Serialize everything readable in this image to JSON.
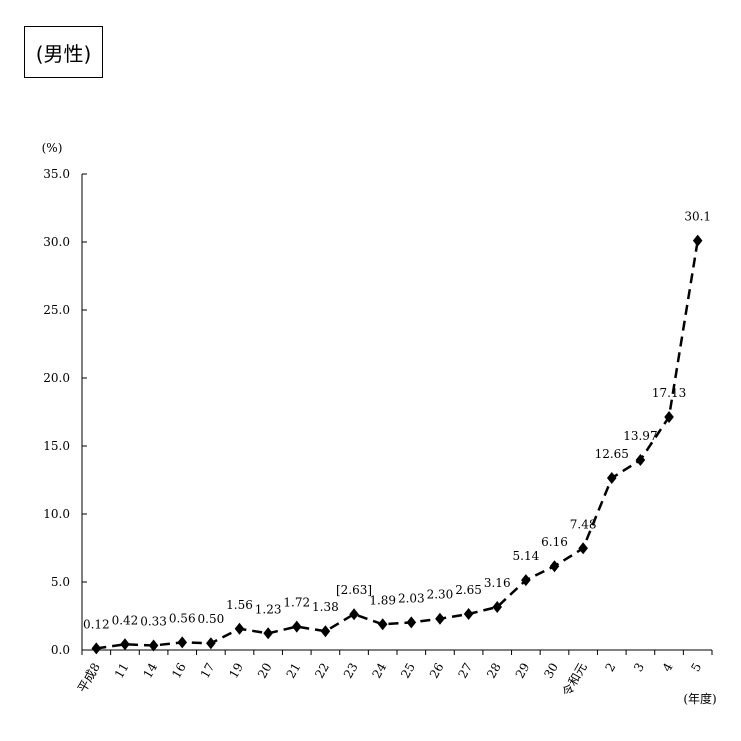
{
  "title": "(男性)",
  "chart_data": {
    "type": "line",
    "title": "(男性)",
    "y_unit_label": "(%)",
    "x_unit_label": "(年度)",
    "ylim": [
      0,
      35
    ],
    "y_ticks": [
      "0.0",
      "5.0",
      "10.0",
      "15.0",
      "20.0",
      "25.0",
      "30.0",
      "35.0"
    ],
    "categories": [
      "平成8",
      "11",
      "14",
      "16",
      "17",
      "19",
      "20",
      "21",
      "22",
      "23",
      "24",
      "25",
      "26",
      "27",
      "28",
      "29",
      "30",
      "令和元",
      "2",
      "3",
      "4",
      "5"
    ],
    "values": [
      0.12,
      0.42,
      0.33,
      0.56,
      0.5,
      1.56,
      1.23,
      1.72,
      1.38,
      2.63,
      1.89,
      2.03,
      2.3,
      2.65,
      3.16,
      5.14,
      6.16,
      7.48,
      12.65,
      13.97,
      17.13,
      30.1
    ],
    "value_labels": [
      "0.12",
      "0.42",
      "0.33",
      "0.56",
      "0.50",
      "1.56",
      "1.23",
      "1.72",
      "1.38",
      "[2.63]",
      "1.89",
      "2.03",
      "2.30",
      "2.65",
      "3.16",
      "5.14",
      "6.16",
      "7.48",
      "12.65",
      "13.97",
      "17.13",
      "30.1"
    ],
    "line_style": "dashed",
    "marker": "diamond",
    "grid": false,
    "legend": "none",
    "colors": {
      "line": "#000000",
      "marker": "#000000"
    }
  }
}
